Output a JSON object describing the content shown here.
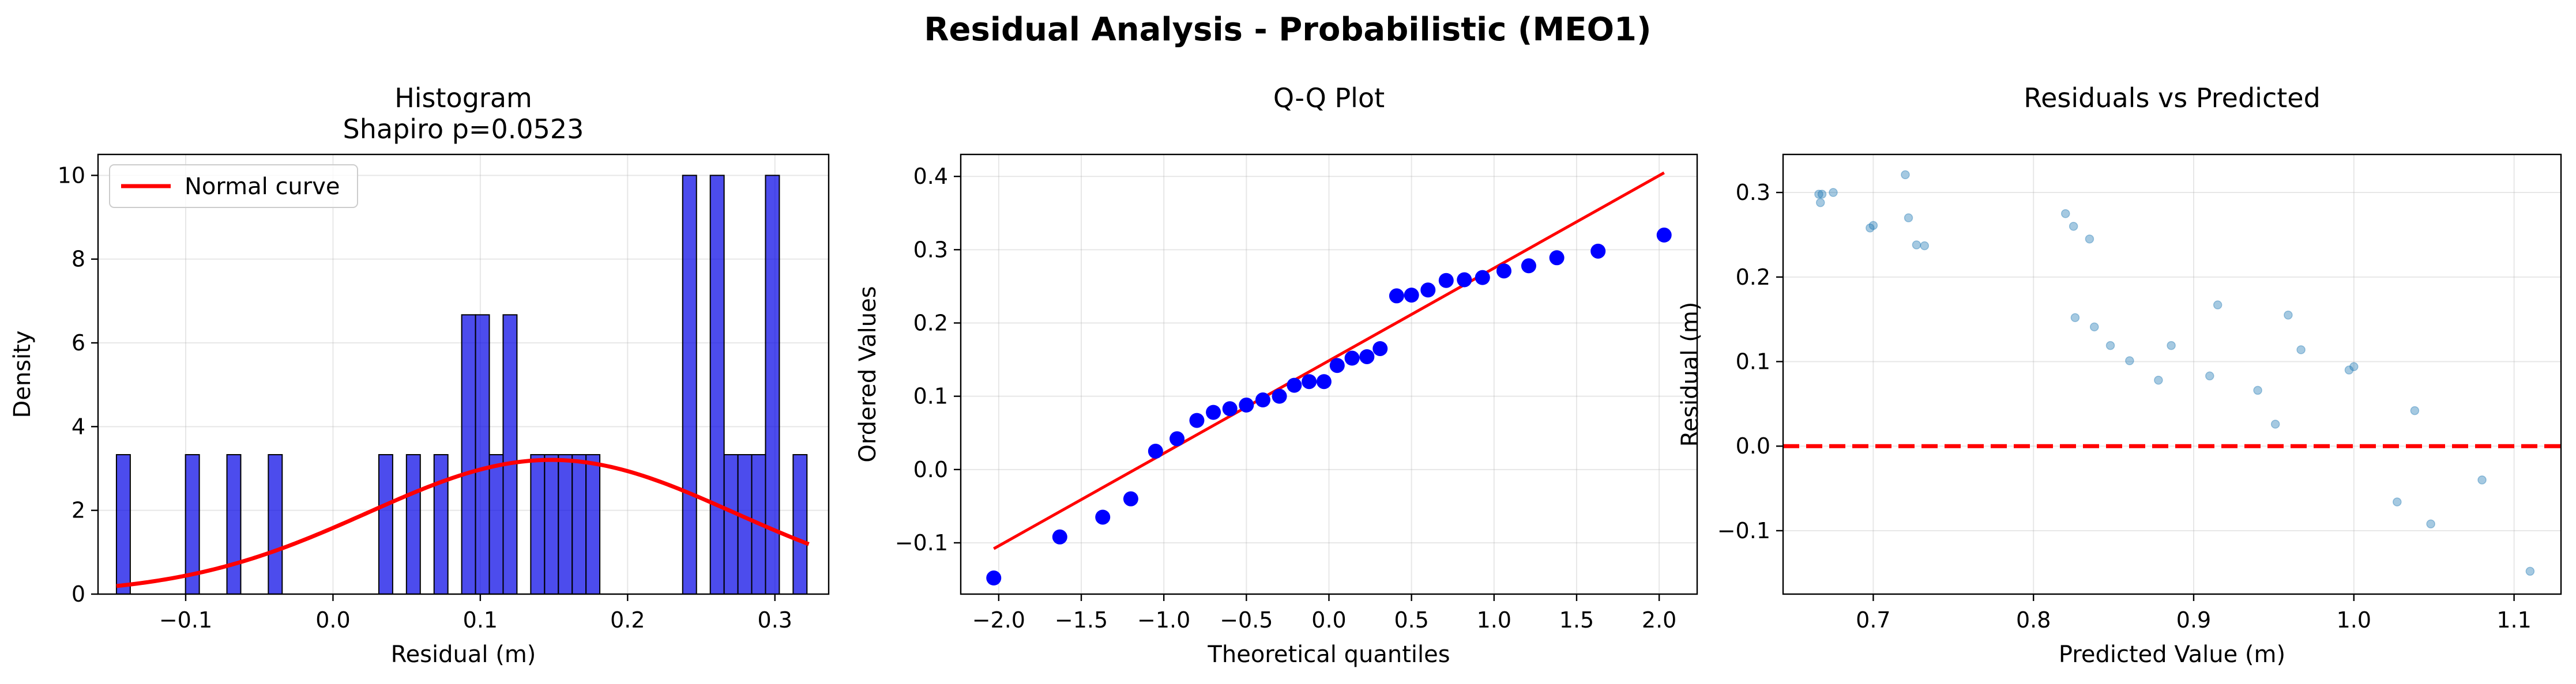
{
  "figure": {
    "suptitle": "Residual Analysis - Probabilistic (MEO1)"
  },
  "chart_data": [
    {
      "type": "bar",
      "title": "Histogram",
      "subtitle": "Shapiro p=0.0523",
      "xlabel": "Residual (m)",
      "ylabel": "Density",
      "xlim": [
        -0.1595,
        0.3365
      ],
      "ylim": [
        0,
        10.5
      ],
      "grid": true,
      "legend_placement": "upper-left",
      "xticks": [
        -0.1,
        0.0,
        0.1,
        0.2,
        0.3
      ],
      "xtick_labels": [
        "−0.1",
        "0.0",
        "0.1",
        "0.2",
        "0.3"
      ],
      "yticks": [
        0,
        2,
        4,
        6,
        8,
        10
      ],
      "ytick_labels": [
        "0",
        "2",
        "4",
        "6",
        "8",
        "10"
      ],
      "bins": {
        "start": -0.147,
        "width": 0.009375,
        "count": 50
      },
      "values": [
        3.33,
        0,
        0,
        0,
        0,
        3.33,
        0,
        0,
        3.33,
        0,
        0,
        3.33,
        0,
        0,
        0,
        0,
        0,
        0,
        0,
        3.33,
        0,
        3.33,
        0,
        3.33,
        0,
        6.67,
        6.67,
        3.33,
        6.67,
        0,
        3.33,
        3.33,
        3.33,
        3.33,
        3.33,
        0,
        0,
        0,
        0,
        0,
        0,
        10,
        0,
        10,
        3.33,
        3.33,
        3.33,
        10,
        0,
        3.33
      ],
      "bar_color": "#0000e6",
      "series": [
        {
          "name": "Normal curve",
          "color": "#ff0000",
          "kind": "normal-pdf",
          "mean": 0.148,
          "std": 0.1245,
          "x_range": [
            -0.147,
            0.323
          ]
        }
      ]
    },
    {
      "type": "scatter",
      "title": "Q-Q Plot",
      "xlabel": "Theoretical quantiles",
      "ylabel": "Ordered Values",
      "xlim": [
        -2.23,
        2.23
      ],
      "ylim": [
        -0.17,
        0.43
      ],
      "grid": true,
      "xticks": [
        -2.0,
        -1.5,
        -1.0,
        -0.5,
        0.0,
        0.5,
        1.0,
        1.5,
        2.0
      ],
      "xtick_labels": [
        "−2.0",
        "−1.5",
        "−1.0",
        "−0.5",
        "0.0",
        "0.5",
        "1.0",
        "1.5",
        "2.0"
      ],
      "yticks": [
        -0.1,
        0.0,
        0.1,
        0.2,
        0.3,
        0.4
      ],
      "ytick_labels": [
        "−0.1",
        "0.0",
        "0.1",
        "0.2",
        "0.3",
        "0.4"
      ],
      "point_color": "#0000ff",
      "x": [
        -2.03,
        -1.63,
        -1.37,
        -1.2,
        -1.05,
        -0.92,
        -0.8,
        -0.7,
        -0.6,
        -0.5,
        -0.4,
        -0.3,
        -0.21,
        -0.12,
        -0.03,
        0.05,
        0.14,
        0.23,
        0.31,
        0.41,
        0.5,
        0.6,
        0.71,
        0.82,
        0.93,
        1.06,
        1.21,
        1.38,
        1.63,
        2.03
      ],
      "y": [
        -0.148,
        -0.092,
        -0.065,
        -0.04,
        0.025,
        0.042,
        0.067,
        0.078,
        0.083,
        0.088,
        0.095,
        0.1,
        0.115,
        0.12,
        0.12,
        0.142,
        0.152,
        0.154,
        0.165,
        0.237,
        0.238,
        0.245,
        0.258,
        0.259,
        0.262,
        0.271,
        0.278,
        0.289,
        0.298,
        0.32
      ],
      "fit_line": {
        "color": "#ff0000",
        "x": [
          -2.03,
          2.03
        ],
        "y": [
          -0.108,
          0.405
        ]
      }
    },
    {
      "type": "scatter",
      "title": "Residuals vs Predicted",
      "xlabel": "Predicted Value (m)",
      "ylabel": "Residual (m)",
      "xlim": [
        0.6437,
        1.1293
      ],
      "ylim": [
        -0.175,
        0.345
      ],
      "grid": true,
      "xticks": [
        0.7,
        0.8,
        0.9,
        1.0,
        1.1
      ],
      "xtick_labels": [
        "0.7",
        "0.8",
        "0.9",
        "1.0",
        "1.1"
      ],
      "yticks": [
        -0.1,
        0.0,
        0.1,
        0.2,
        0.3
      ],
      "ytick_labels": [
        "−0.1",
        "0.0",
        "0.1",
        "0.2",
        "0.3"
      ],
      "point_color": "#1f77b4",
      "x": [
        0.666,
        0.667,
        0.668,
        0.675,
        0.698,
        0.7,
        0.72,
        0.722,
        0.727,
        0.732,
        0.82,
        0.825,
        0.826,
        0.835,
        0.838,
        0.848,
        0.86,
        0.878,
        0.886,
        0.91,
        0.915,
        0.94,
        0.951,
        0.959,
        0.967,
        0.997,
        1.0,
        1.038,
        1.027,
        1.048,
        1.08,
        1.11
      ],
      "y": [
        0.298,
        0.288,
        0.298,
        0.3,
        0.258,
        0.261,
        0.321,
        0.27,
        0.238,
        0.237,
        0.275,
        0.26,
        0.152,
        0.245,
        0.141,
        0.119,
        0.101,
        0.078,
        0.119,
        0.083,
        0.167,
        0.066,
        0.026,
        0.155,
        0.114,
        0.09,
        0.094,
        0.042,
        -0.066,
        -0.092,
        -0.04,
        -0.148
      ],
      "hline": {
        "y": 0.0,
        "color": "#ff0000",
        "style": "dashed"
      }
    }
  ]
}
